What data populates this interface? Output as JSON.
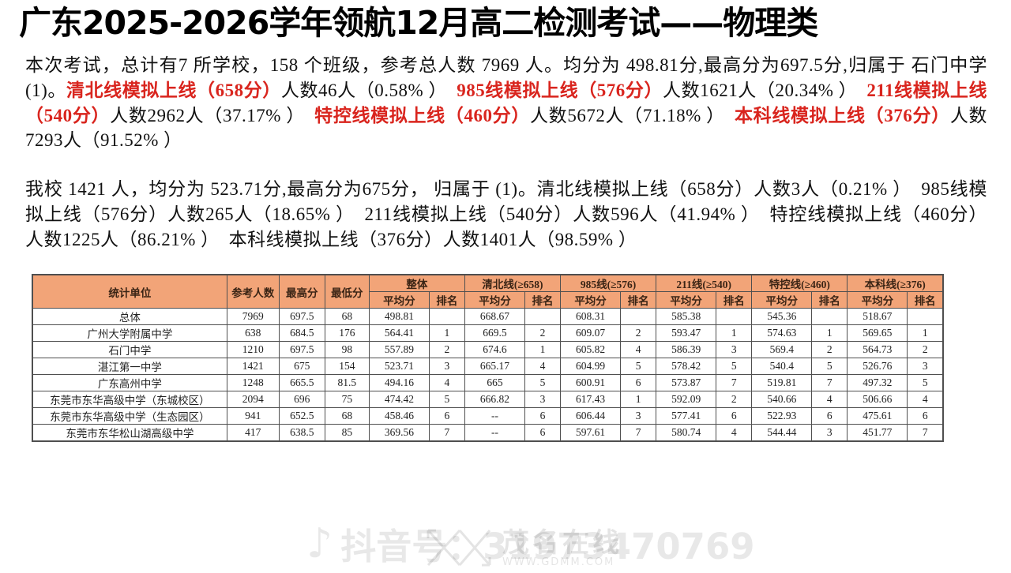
{
  "page": {
    "title": "广东2025-2026学年领航12月高二检测考试——物理类"
  },
  "colors": {
    "highlight_red": "#d9251e",
    "table_header_bg": "#f2a478",
    "table_border": "#4f4f4f"
  },
  "paragraphs": [
    {
      "segments": [
        {
          "red": false,
          "text": "本次考试，总计有7 所学校，158 个班级，参考总人数 7969 人。均分为 498.81分,最高分为697.5分,归属于 石门中学(1)。"
        },
        {
          "red": true,
          "text": "清北线模拟上线（658分）"
        },
        {
          "red": false,
          "text": "人数46人（0.58% ）　"
        },
        {
          "red": true,
          "text": "985线模拟上线（576分）"
        },
        {
          "red": false,
          "text": "人数1621人（20.34% ）　"
        },
        {
          "red": true,
          "text": "211线模拟上线（540分）"
        },
        {
          "red": false,
          "text": "人数2962人（37.17% ）　"
        },
        {
          "red": true,
          "text": "特控线模拟上线（460分）"
        },
        {
          "red": false,
          "text": "人数5672人（71.18% ）　"
        },
        {
          "red": true,
          "text": "本科线模拟上线（376分）"
        },
        {
          "red": false,
          "text": "人数7293人（91.52% ）"
        }
      ]
    },
    {
      "segments": [
        {
          "red": false,
          "text": "我校 1421 人，均分为 523.71分,最高分为675分， 归属于 (1)。清北线模拟上线（658分）人数3人（0.21% ）　985线模拟上线（576分）人数265人（18.65% ）　211线模拟上线（540分）人数596人（41.94% ）　特控线模拟上线（460分）人数1225人（86.21% ）　本科线模拟上线（376分）人数1401人（98.59% ）"
        }
      ]
    }
  ],
  "table": {
    "static_headers": [
      "统计单位",
      "参考人数",
      "最高分",
      "最低分"
    ],
    "group_headers": [
      "整体",
      "清北线(≥658)",
      "985线(≥576)",
      "211线(≥540)",
      "特控线(≥460)",
      "本科线(≥376)"
    ],
    "sub_headers": [
      "平均分",
      "排名"
    ],
    "rows": [
      [
        "总体",
        "7969",
        "697.5",
        "68",
        "498.81",
        "",
        "668.67",
        "",
        "608.31",
        "",
        "585.38",
        "",
        "545.36",
        "",
        "518.67",
        ""
      ],
      [
        "广州大学附属中学",
        "638",
        "684.5",
        "176",
        "564.41",
        "1",
        "669.5",
        "2",
        "609.07",
        "2",
        "593.47",
        "1",
        "574.63",
        "1",
        "569.65",
        "1"
      ],
      [
        "石门中学",
        "1210",
        "697.5",
        "98",
        "557.89",
        "2",
        "674.6",
        "1",
        "605.82",
        "4",
        "586.39",
        "3",
        "569.4",
        "2",
        "564.73",
        "2"
      ],
      [
        "湛江第一中学",
        "1421",
        "675",
        "154",
        "523.71",
        "3",
        "665.17",
        "4",
        "604.99",
        "5",
        "578.42",
        "5",
        "540.4",
        "5",
        "526.76",
        "3"
      ],
      [
        "广东高州中学",
        "1248",
        "665.5",
        "81.5",
        "494.16",
        "4",
        "665",
        "5",
        "600.91",
        "6",
        "573.87",
        "7",
        "519.81",
        "7",
        "497.32",
        "5"
      ],
      [
        "东莞市东华高级中学（东城校区）",
        "2094",
        "696",
        "75",
        "474.42",
        "5",
        "666.82",
        "3",
        "617.43",
        "1",
        "592.09",
        "2",
        "540.66",
        "4",
        "506.66",
        "4"
      ],
      [
        "东莞市东华高级中学（生态园区）",
        "941",
        "652.5",
        "68",
        "458.46",
        "6",
        "--",
        "6",
        "606.44",
        "3",
        "577.41",
        "6",
        "522.93",
        "6",
        "475.61",
        "6"
      ],
      [
        "东莞市东华松山湖高级中学",
        "417",
        "638.5",
        "85",
        "369.56",
        "7",
        "--",
        "6",
        "597.61",
        "7",
        "580.74",
        "4",
        "544.44",
        "3",
        "451.77",
        "7"
      ]
    ]
  },
  "watermark": {
    "douyin_icon": "music-note-icon",
    "douyin_label": "抖音号：31973470769",
    "site_name": "茂名在线",
    "site_url": "WWW.GDMM.COM"
  }
}
